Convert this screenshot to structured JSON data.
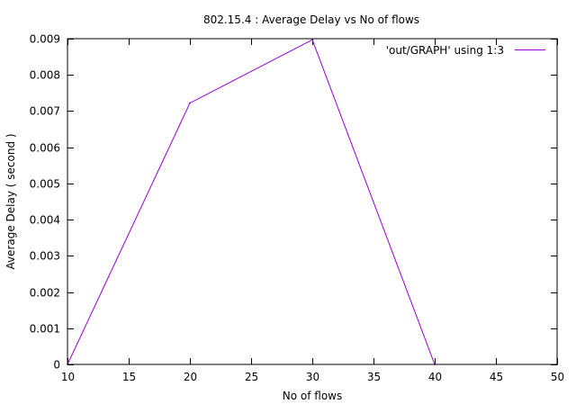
{
  "chart_data": {
    "type": "line",
    "title": "802.15.4 : Average Delay vs No of flows",
    "xlabel": "No of flows",
    "ylabel": "Average Delay ( second )",
    "xlim": [
      10,
      50
    ],
    "ylim": [
      0,
      0.009
    ],
    "xticks": [
      10,
      15,
      20,
      25,
      30,
      35,
      40,
      45,
      50
    ],
    "yticks": [
      "0",
      "0.001",
      "0.002",
      "0.003",
      "0.004",
      "0.005",
      "0.006",
      "0.007",
      "0.008",
      "0.009"
    ],
    "grid": false,
    "legend_position": "top-right",
    "series": [
      {
        "name": "'out/GRAPH' using 1:3",
        "color": "#9400d3",
        "x": [
          10,
          20,
          30,
          40,
          50
        ],
        "y": [
          0,
          0.00722,
          0.00897,
          0,
          0
        ]
      }
    ]
  }
}
